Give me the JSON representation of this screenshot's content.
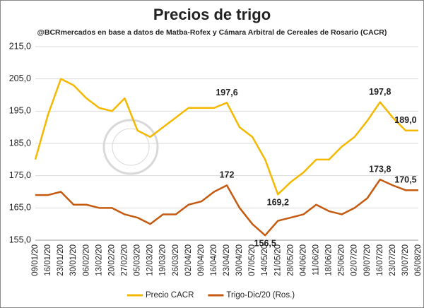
{
  "chart_data": {
    "type": "line",
    "title": "Precios de trigo",
    "subtitle": "@BCRmercados en base a datos de Matba-Rofex y Cámara Arbitral de Cereales de Rosario (CACR)",
    "categories": [
      "09/01/20",
      "16/01/20",
      "23/01/20",
      "30/01/20",
      "06/02/20",
      "13/02/20",
      "20/02/20",
      "27/02/20",
      "05/03/20",
      "12/03/20",
      "19/03/20",
      "26/03/20",
      "02/04/20",
      "09/04/20",
      "16/04/20",
      "23/04/20",
      "30/04/20",
      "07/05/20",
      "14/05/20",
      "21/05/20",
      "28/05/20",
      "04/06/20",
      "11/06/20",
      "18/06/20",
      "25/06/20",
      "02/07/20",
      "09/07/20",
      "16/07/20",
      "23/07/20",
      "30/07/20",
      "06/08/20"
    ],
    "series": [
      {
        "name": "Precio CACR",
        "color": "#f5b800",
        "values": [
          180,
          194,
          205,
          203,
          199,
          196,
          195,
          199,
          189,
          187,
          190,
          193,
          196,
          196,
          196,
          197.6,
          190,
          187,
          180,
          169.2,
          173,
          176,
          180,
          180,
          184,
          187,
          192,
          197.8,
          193,
          189,
          189
        ],
        "value_labels": [
          null,
          null,
          null,
          null,
          null,
          null,
          null,
          null,
          null,
          null,
          null,
          null,
          null,
          null,
          null,
          "197,6",
          null,
          null,
          null,
          "169,2",
          null,
          null,
          null,
          null,
          null,
          null,
          null,
          "197,8",
          null,
          "189,0",
          null
        ]
      },
      {
        "name": "Trigo-Dic/20 (Ros.)",
        "color": "#c55a11",
        "values": [
          169,
          169,
          170,
          166,
          166,
          165,
          165,
          163,
          162,
          160,
          163,
          163,
          166,
          167,
          170,
          172,
          165,
          160,
          156.5,
          161,
          162,
          163,
          166,
          164,
          163,
          165,
          168,
          173.8,
          172,
          170.5,
          170.5
        ],
        "value_labels": [
          null,
          null,
          null,
          null,
          null,
          null,
          null,
          null,
          null,
          null,
          null,
          null,
          null,
          null,
          null,
          "172",
          null,
          null,
          "156,5",
          null,
          null,
          null,
          null,
          null,
          null,
          null,
          null,
          "173,8",
          null,
          "170,5",
          null
        ]
      }
    ],
    "ylim": [
      155,
      215
    ],
    "yticks": [
      {
        "value": 155,
        "label": "155,0"
      },
      {
        "value": 165,
        "label": "165,0"
      },
      {
        "value": 175,
        "label": "175,0"
      },
      {
        "value": 185,
        "label": "185,0"
      },
      {
        "value": 195,
        "label": "195,0"
      },
      {
        "value": 205,
        "label": "205,0"
      },
      {
        "value": 215,
        "label": "215,0"
      }
    ],
    "grid": true,
    "legend": "bottom"
  }
}
